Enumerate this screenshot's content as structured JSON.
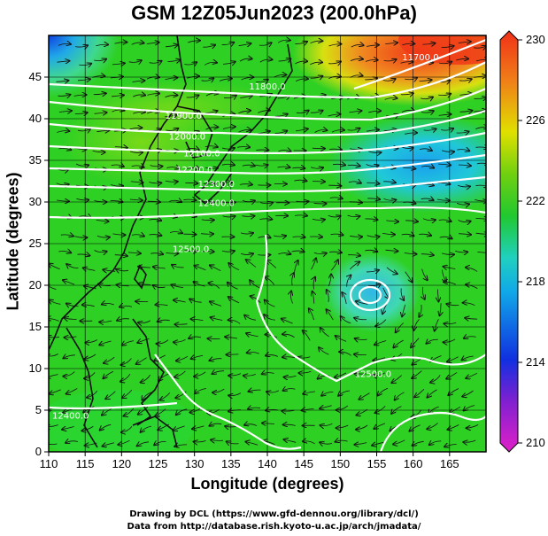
{
  "header": {
    "title": "GSM 12Z05Jun2023 (200.0hPa)"
  },
  "axes": {
    "xlabel": "Longitude (degrees)",
    "ylabel": "Latitude  (degrees)",
    "xlim": [
      110,
      170
    ],
    "ylim": [
      0,
      50
    ],
    "xticks": [
      110,
      115,
      120,
      125,
      130,
      135,
      140,
      145,
      150,
      155,
      160,
      165
    ],
    "yticks": [
      0,
      5,
      10,
      15,
      20,
      25,
      30,
      35,
      40,
      45
    ]
  },
  "colorbar": {
    "range": [
      210,
      230
    ],
    "ticks": [
      210,
      214,
      218,
      222,
      226,
      230
    ],
    "colors": {
      "low": "#e000c0",
      "mid_low": "#1030e0",
      "mid": "#20c8d0",
      "green": "#22c21a",
      "yellow": "#e8e000",
      "high": "#f03018"
    }
  },
  "map": {
    "colors": {
      "land": "#101010",
      "contour": "#ffffff",
      "streamline": "#141414",
      "field_base": "#2ed024"
    }
  },
  "contour_labels": [
    {
      "text": "11700.0",
      "lon": 161,
      "lat": 47
    },
    {
      "text": "11800.0",
      "lon": 140,
      "lat": 43.5
    },
    {
      "text": "11900.0",
      "lon": 128.5,
      "lat": 40
    },
    {
      "text": "12000.0",
      "lon": 129,
      "lat": 37.5
    },
    {
      "text": "12100.0",
      "lon": 131,
      "lat": 35.5
    },
    {
      "text": "12200.0",
      "lon": 130,
      "lat": 33.5
    },
    {
      "text": "12300.0",
      "lon": 133,
      "lat": 31.8
    },
    {
      "text": "12400.0",
      "lon": 133,
      "lat": 29.5
    },
    {
      "text": "12500.0",
      "lon": 129.5,
      "lat": 24
    },
    {
      "text": "12500.0",
      "lon": 154.5,
      "lat": 9
    },
    {
      "text": "12400.0",
      "lon": 113,
      "lat": 4
    }
  ],
  "footer": {
    "line1": "Drawing by DCL (https://www.gfd-dennou.org/library/dcl/)",
    "line2": "Data from http://database.rish.kyoto-u.ac.jp/arch/jmadata/"
  }
}
